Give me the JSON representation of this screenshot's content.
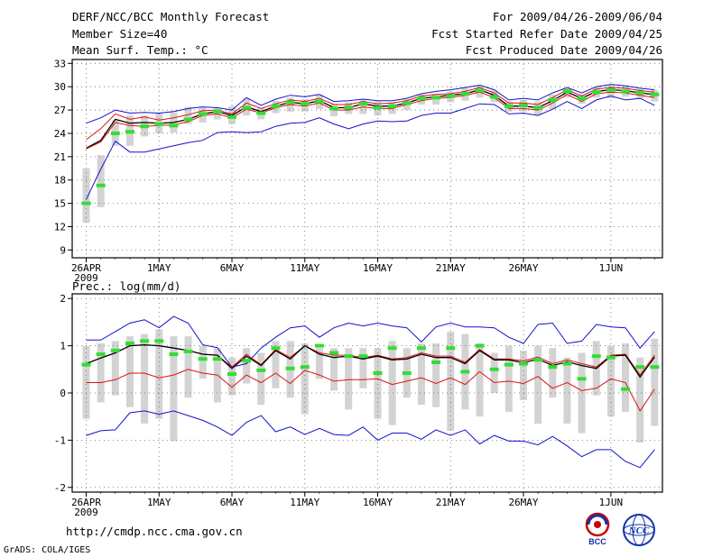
{
  "header": {
    "title": "DERF/NCC/BCC Monthly Forecast",
    "member_size": "Member Size=40",
    "variable": "Mean Surf. Temp.: °C",
    "period": "For 2009/04/26-2009/06/04",
    "start_date": "Fcst Started Refer Date 2009/04/25",
    "produced_date": "Fcst Produced Date 2009/04/26"
  },
  "footer": {
    "url": "http://cmdp.ncc.cma.gov.cn",
    "grads": "GrADS: COLA/IGES",
    "logo_bcc": "BCC",
    "logo_ncc": "NCC"
  },
  "colors": {
    "box": "#d3d3d3",
    "median": "#33dd33",
    "mean": "#000000",
    "spread_inner": "#dd1111",
    "spread_outer": "#1111cc",
    "grid": "#666666"
  },
  "chart_data": [
    {
      "type": "line",
      "title": "Mean Surf. Temp.: °C",
      "ylabel": "°C",
      "x_tick_labels": [
        "26APR",
        "1MAY",
        "6MAY",
        "11MAY",
        "16MAY",
        "21MAY",
        "26MAY",
        "1JUN"
      ],
      "x_tick_days": [
        1,
        6,
        11,
        16,
        21,
        26,
        31,
        37
      ],
      "year_label": "2009",
      "ylim": [
        8,
        33.5
      ],
      "yticks": [
        9,
        12,
        15,
        18,
        21,
        24,
        27,
        30,
        33
      ],
      "days": 40,
      "series": [
        {
          "name": "max",
          "values": [
            25.3,
            26,
            27,
            26.6,
            26.7,
            26.6,
            26.8,
            27.2,
            27.4,
            27.3,
            27,
            28.6,
            27.6,
            28.4,
            28.9,
            28.7,
            29,
            28.1,
            28.2,
            28.4,
            28.2,
            28.2,
            28.5,
            29.1,
            29.4,
            29.6,
            29.9,
            30.2,
            29.6,
            28.3,
            28.5,
            28.3,
            29.2,
            29.9,
            29.2,
            30,
            30.3,
            30.1,
            29.8,
            29.6
          ]
        },
        {
          "name": "upper",
          "values": [
            23.2,
            24.6,
            26.5,
            25.8,
            26.1,
            25.7,
            26,
            26.4,
            26.9,
            27,
            26.5,
            27.9,
            27.2,
            27.8,
            28.3,
            28.1,
            28.5,
            27.7,
            27.7,
            28.1,
            27.8,
            27.9,
            28.2,
            28.8,
            29,
            29.1,
            29.4,
            29.9,
            29.2,
            27.9,
            27.9,
            27.7,
            28.6,
            29.6,
            28.8,
            29.7,
            29.9,
            29.8,
            29.5,
            29.3
          ]
        },
        {
          "name": "mean",
          "values": [
            22.1,
            23.1,
            25.8,
            25.3,
            25.4,
            25.3,
            25.4,
            25.8,
            26.5,
            26.8,
            26.3,
            27.4,
            26.8,
            27.5,
            28,
            27.8,
            28.2,
            27.3,
            27.3,
            27.8,
            27.5,
            27.5,
            27.9,
            28.5,
            28.7,
            28.9,
            29.1,
            29.6,
            28.9,
            27.5,
            27.5,
            27.3,
            28.2,
            29.3,
            28.5,
            29.4,
            29.6,
            29.5,
            29.2,
            29
          ]
        },
        {
          "name": "lower",
          "values": [
            22,
            22.9,
            25.4,
            25,
            24.9,
            25,
            25.1,
            25.5,
            26.3,
            26.5,
            26,
            27.1,
            26.6,
            27.3,
            27.7,
            27.5,
            27.9,
            27,
            27,
            27.4,
            27.2,
            27.2,
            27.7,
            28.2,
            28.5,
            28.6,
            28.9,
            29.3,
            28.6,
            27.2,
            27.2,
            27,
            27.9,
            29,
            28.1,
            29.1,
            29.3,
            29.2,
            28.9,
            28.6
          ]
        },
        {
          "name": "min",
          "values": [
            15.5,
            19.4,
            23,
            21.6,
            21.6,
            22,
            22.4,
            22.8,
            23.1,
            24.1,
            24.2,
            24.1,
            24.2,
            24.9,
            25.3,
            25.4,
            26,
            25.2,
            24.6,
            25.2,
            25.6,
            25.5,
            25.6,
            26.3,
            26.6,
            26.6,
            27.2,
            27.8,
            27.7,
            26.5,
            26.6,
            26.3,
            27.1,
            28.1,
            27.2,
            28.3,
            28.8,
            28.3,
            28.5,
            27.6
          ]
        }
      ],
      "boxes": [
        {
          "name": "box_low",
          "values": [
            12.5,
            14.5,
            22.4,
            22.4,
            23.6,
            24,
            24.1,
            25.2,
            25.4,
            25.8,
            25.2,
            26.3,
            25.8,
            26.6,
            26.8,
            26.8,
            27.1,
            26.2,
            26.5,
            26.5,
            26.3,
            26.5,
            27,
            27.7,
            27.7,
            28,
            28.2,
            28.6,
            28,
            26.8,
            26.8,
            26.4,
            27.1,
            28.6,
            27.8,
            28.6,
            28.5,
            28.7,
            28.4,
            28.1
          ]
        },
        {
          "name": "box_high",
          "values": [
            19.5,
            21.2,
            25.7,
            26.3,
            26.3,
            26.6,
            26.7,
            27.4,
            27.3,
            27.3,
            27.5,
            28.5,
            27.3,
            28.2,
            28.6,
            28.4,
            28.9,
            27.8,
            28,
            28.4,
            28.1,
            28,
            28.4,
            29,
            29.1,
            29.4,
            29.8,
            30.1,
            29.5,
            28.1,
            28.3,
            28.1,
            29,
            29.8,
            29,
            30,
            30.2,
            30,
            29.7,
            29.6
          ]
        },
        {
          "name": "median",
          "values": [
            15,
            17.3,
            24,
            24.2,
            24.9,
            25.2,
            25,
            25.8,
            26.5,
            26.8,
            26.1,
            27.3,
            26.6,
            27.5,
            28,
            27.8,
            28.1,
            27.2,
            27.3,
            27.8,
            27.3,
            27.5,
            27.9,
            28.5,
            28.6,
            28.8,
            29.1,
            29.5,
            28.7,
            27.5,
            27.6,
            27.3,
            28.3,
            29.4,
            28.5,
            29.3,
            29.6,
            29.4,
            29.2,
            29
          ]
        }
      ]
    },
    {
      "type": "line",
      "title": "Prec.: log(mm/d)",
      "ylabel": "log(mm/d)",
      "x_tick_labels": [
        "26APR",
        "1MAY",
        "6MAY",
        "11MAY",
        "16MAY",
        "21MAY",
        "26MAY",
        "1JUN"
      ],
      "x_tick_days": [
        1,
        6,
        11,
        16,
        21,
        26,
        31,
        37
      ],
      "year_label": "2009",
      "ylim": [
        -2.1,
        2.1
      ],
      "yticks": [
        -2,
        -1,
        0,
        1,
        2
      ],
      "days": 40,
      "series": [
        {
          "name": "max",
          "values": [
            1.12,
            1.12,
            1.3,
            1.48,
            1.55,
            1.38,
            1.62,
            1.48,
            1.02,
            0.96,
            0.55,
            0.62,
            0.95,
            1.18,
            1.38,
            1.42,
            1.18,
            1.38,
            1.48,
            1.42,
            1.48,
            1.42,
            1.38,
            1.08,
            1.4,
            1.48,
            1.4,
            1.4,
            1.38,
            1.18,
            1.05,
            1.45,
            1.48,
            1.05,
            1.1,
            1.45,
            1.4,
            1.38,
            0.95,
            1.3
          ]
        },
        {
          "name": "upper",
          "values": [
            0.62,
            0.74,
            0.85,
            1.0,
            1.02,
            1.0,
            0.95,
            0.9,
            0.82,
            0.8,
            0.55,
            0.82,
            0.6,
            0.92,
            0.75,
            1.0,
            0.85,
            0.8,
            0.8,
            0.75,
            0.8,
            0.72,
            0.75,
            0.85,
            0.78,
            0.78,
            0.65,
            0.92,
            0.72,
            0.72,
            0.68,
            0.76,
            0.62,
            0.7,
            0.62,
            0.55,
            0.8,
            0.82,
            0.38,
            0.8
          ]
        },
        {
          "name": "mean",
          "values": [
            0.62,
            0.74,
            0.85,
            1.0,
            1.02,
            1.0,
            0.95,
            0.9,
            0.82,
            0.8,
            0.52,
            0.78,
            0.58,
            0.9,
            0.72,
            1.0,
            0.82,
            0.75,
            0.78,
            0.72,
            0.78,
            0.7,
            0.72,
            0.82,
            0.75,
            0.75,
            0.62,
            0.9,
            0.7,
            0.7,
            0.64,
            0.72,
            0.58,
            0.66,
            0.58,
            0.52,
            0.78,
            0.8,
            0.34,
            0.76
          ]
        },
        {
          "name": "lower",
          "values": [
            0.22,
            0.22,
            0.28,
            0.42,
            0.42,
            0.32,
            0.38,
            0.5,
            0.42,
            0.38,
            0.12,
            0.38,
            0.22,
            0.42,
            0.2,
            0.48,
            0.38,
            0.25,
            0.28,
            0.28,
            0.3,
            0.18,
            0.25,
            0.32,
            0.2,
            0.32,
            0.18,
            0.45,
            0.22,
            0.25,
            0.2,
            0.35,
            0.1,
            0.22,
            0.05,
            0.1,
            0.3,
            0.22,
            -0.38,
            0.08
          ]
        },
        {
          "name": "min",
          "values": [
            -0.9,
            -0.8,
            -0.78,
            -0.42,
            -0.38,
            -0.45,
            -0.38,
            -0.48,
            -0.58,
            -0.72,
            -0.9,
            -0.62,
            -0.48,
            -0.82,
            -0.72,
            -0.88,
            -0.75,
            -0.88,
            -0.9,
            -0.72,
            -1.0,
            -0.85,
            -0.85,
            -0.98,
            -0.78,
            -0.9,
            -0.78,
            -1.08,
            -0.9,
            -1.02,
            -1.02,
            -1.1,
            -0.92,
            -1.12,
            -1.35,
            -1.2,
            -1.2,
            -1.45,
            -1.58,
            -1.2
          ]
        }
      ],
      "boxes": [
        {
          "name": "box_low",
          "values": [
            -0.55,
            -0.2,
            -0.05,
            -0.3,
            -0.65,
            -0.55,
            -1.02,
            -0.1,
            0.3,
            -0.2,
            -0.05,
            0.2,
            -0.25,
            0.1,
            -0.1,
            -0.45,
            0.3,
            0.05,
            -0.35,
            0.1,
            -0.55,
            -0.68,
            -0.1,
            -0.25,
            -0.3,
            -0.8,
            -0.35,
            -0.5,
            0.0,
            -0.4,
            -0.15,
            -0.65,
            -0.1,
            -0.65,
            -0.85,
            -0.05,
            -0.5,
            -0.4,
            -1.05,
            -0.7
          ]
        },
        {
          "name": "box_high",
          "values": [
            1.0,
            1.05,
            1.1,
            1.2,
            1.25,
            1.35,
            1.2,
            1.2,
            1.0,
            0.95,
            0.75,
            0.95,
            0.85,
            1.1,
            1.1,
            1.05,
            0.95,
            0.95,
            0.95,
            0.95,
            0.95,
            1.1,
            0.95,
            1.05,
            1.05,
            1.3,
            1.25,
            1.05,
            0.85,
            1.0,
            0.9,
            1.0,
            0.95,
            0.75,
            0.85,
            1.1,
            1.0,
            1.05,
            0.75,
            1.15
          ]
        },
        {
          "name": "median",
          "values": [
            0.6,
            0.82,
            0.9,
            1.05,
            1.1,
            1.1,
            0.82,
            0.88,
            0.72,
            0.72,
            0.4,
            0.68,
            0.48,
            0.95,
            0.52,
            0.55,
            1.0,
            0.85,
            0.78,
            0.78,
            0.42,
            0.95,
            0.42,
            0.95,
            0.65,
            0.95,
            0.45,
            1.0,
            0.5,
            0.6,
            0.62,
            0.7,
            0.55,
            0.62,
            0.3,
            0.78,
            0.75,
            0.08,
            0.55,
            0.55
          ]
        }
      ]
    }
  ]
}
